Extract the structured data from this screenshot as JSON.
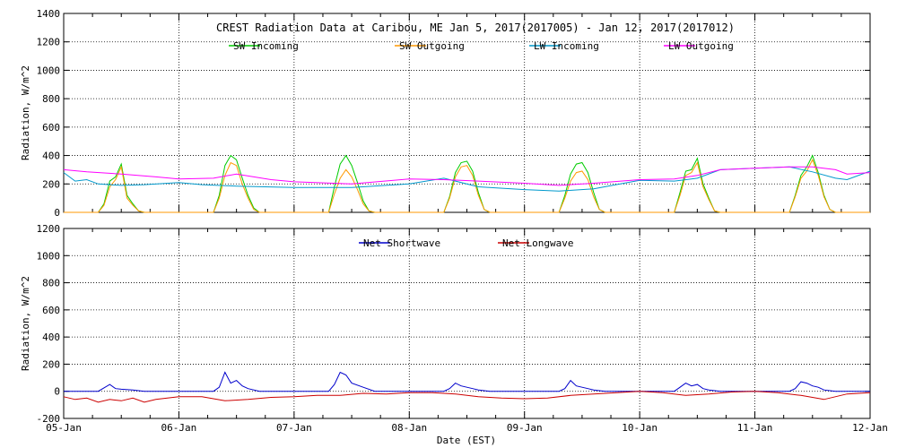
{
  "chart_data": [
    {
      "type": "line",
      "title": "CREST Radiation Data at Caribou, ME   Jan  5, 2017(2017005) - Jan 12, 2017(2017012)",
      "xlabel": "",
      "ylabel": "Radiation, W/m^2",
      "ylim": [
        0,
        1400
      ],
      "yticks": [
        0,
        200,
        400,
        600,
        800,
        1000,
        1200,
        1400
      ],
      "xlim": [
        0,
        7
      ],
      "grid": true,
      "legend_position": "top-center",
      "series": [
        {
          "name": "SW Incoming",
          "color": "#00cc00",
          "x": [
            0,
            0.3,
            0.35,
            0.4,
            0.45,
            0.5,
            0.55,
            0.6,
            0.65,
            0.7,
            1,
            1.3,
            1.35,
            1.4,
            1.45,
            1.5,
            1.55,
            1.6,
            1.65,
            1.7,
            2,
            2.3,
            2.35,
            2.4,
            2.45,
            2.5,
            2.55,
            2.6,
            2.65,
            2.7,
            3,
            3.3,
            3.35,
            3.4,
            3.45,
            3.5,
            3.55,
            3.6,
            3.65,
            3.7,
            4,
            4.3,
            4.35,
            4.4,
            4.45,
            4.5,
            4.55,
            4.6,
            4.65,
            4.7,
            5,
            5.3,
            5.35,
            5.4,
            5.45,
            5.5,
            5.55,
            5.6,
            5.65,
            5.7,
            6,
            6.3,
            6.35,
            6.4,
            6.45,
            6.5,
            6.55,
            6.6,
            6.65,
            6.7,
            7
          ],
          "y": [
            0,
            0,
            60,
            220,
            250,
            340,
            120,
            60,
            10,
            0,
            0,
            0,
            120,
            330,
            400,
            370,
            240,
            120,
            30,
            0,
            0,
            0,
            180,
            340,
            400,
            330,
            210,
            80,
            10,
            0,
            0,
            0,
            110,
            280,
            350,
            360,
            290,
            140,
            20,
            0,
            0,
            0,
            120,
            270,
            340,
            350,
            280,
            140,
            20,
            0,
            0,
            0,
            140,
            290,
            300,
            380,
            200,
            100,
            10,
            0,
            0,
            0,
            120,
            260,
            320,
            400,
            280,
            120,
            20,
            0,
            0
          ]
        },
        {
          "name": "SW Outgoing",
          "color": "#ff9900",
          "x": [
            0,
            0.3,
            0.35,
            0.4,
            0.45,
            0.5,
            0.55,
            0.6,
            0.65,
            0.7,
            1,
            1.3,
            1.35,
            1.4,
            1.45,
            1.5,
            1.55,
            1.6,
            1.65,
            1.7,
            2,
            2.3,
            2.35,
            2.4,
            2.45,
            2.5,
            2.55,
            2.6,
            2.65,
            2.7,
            3,
            3.3,
            3.35,
            3.4,
            3.45,
            3.5,
            3.55,
            3.6,
            3.65,
            3.7,
            4,
            4.3,
            4.35,
            4.4,
            4.45,
            4.5,
            4.55,
            4.6,
            4.65,
            4.7,
            5,
            5.3,
            5.35,
            5.4,
            5.45,
            5.5,
            5.55,
            5.6,
            5.65,
            5.7,
            6,
            6.3,
            6.35,
            6.4,
            6.45,
            6.5,
            6.55,
            6.6,
            6.65,
            6.7,
            7
          ],
          "y": [
            0,
            0,
            50,
            180,
            230,
            320,
            100,
            50,
            10,
            0,
            0,
            0,
            100,
            260,
            350,
            330,
            200,
            100,
            20,
            0,
            0,
            0,
            130,
            240,
            300,
            250,
            160,
            60,
            10,
            0,
            0,
            0,
            100,
            250,
            320,
            330,
            260,
            120,
            20,
            0,
            0,
            0,
            100,
            220,
            280,
            290,
            230,
            110,
            20,
            0,
            0,
            0,
            120,
            260,
            280,
            350,
            180,
            90,
            10,
            0,
            0,
            0,
            110,
            240,
            290,
            370,
            260,
            110,
            20,
            0,
            0
          ]
        },
        {
          "name": "LW Incoming",
          "color": "#0099cc",
          "x": [
            0,
            0.1,
            0.2,
            0.3,
            0.5,
            0.7,
            1,
            1.2,
            1.5,
            2,
            2.5,
            3,
            3.3,
            3.6,
            4,
            4.3,
            4.6,
            5,
            5.3,
            5.5,
            5.7,
            6,
            6.3,
            6.5,
            6.7,
            6.8,
            7
          ],
          "y": [
            280,
            220,
            230,
            200,
            190,
            195,
            210,
            195,
            185,
            175,
            175,
            200,
            240,
            180,
            160,
            150,
            165,
            225,
            220,
            240,
            300,
            310,
            320,
            285,
            240,
            230,
            290
          ]
        },
        {
          "name": "LW Outgoing",
          "color": "#ff00ff",
          "x": [
            0,
            0.2,
            0.5,
            0.8,
            1,
            1.3,
            1.5,
            1.8,
            2,
            2.5,
            3,
            3.3,
            3.6,
            4,
            4.3,
            4.6,
            5,
            5.3,
            5.5,
            5.7,
            6,
            6.3,
            6.5,
            6.7,
            6.8,
            7
          ],
          "y": [
            300,
            285,
            270,
            250,
            235,
            240,
            270,
            230,
            215,
            200,
            235,
            230,
            220,
            205,
            190,
            205,
            230,
            235,
            260,
            300,
            310,
            320,
            320,
            300,
            270,
            280
          ]
        }
      ]
    },
    {
      "type": "line",
      "title": "",
      "xlabel": "Date (EST)",
      "ylabel": "Radiation, W/m^2",
      "ylim": [
        -200,
        1200
      ],
      "yticks": [
        -200,
        0,
        200,
        400,
        600,
        800,
        1000,
        1200
      ],
      "xlim": [
        0,
        7
      ],
      "categories": [
        "05-Jan",
        "06-Jan",
        "07-Jan",
        "08-Jan",
        "09-Jan",
        "10-Jan",
        "11-Jan",
        "12-Jan"
      ],
      "grid": true,
      "legend_position": "top-center",
      "series": [
        {
          "name": "Net Shortwave",
          "color": "#0000cc",
          "x": [
            0,
            0.3,
            0.4,
            0.45,
            0.5,
            0.6,
            0.7,
            1,
            1.3,
            1.35,
            1.4,
            1.45,
            1.5,
            1.55,
            1.6,
            1.7,
            2,
            2.3,
            2.35,
            2.4,
            2.45,
            2.5,
            2.6,
            2.7,
            3,
            3.3,
            3.35,
            3.4,
            3.45,
            3.5,
            3.55,
            3.6,
            3.7,
            4,
            4.3,
            4.35,
            4.4,
            4.45,
            4.5,
            4.55,
            4.6,
            4.7,
            5,
            5.3,
            5.35,
            5.4,
            5.45,
            5.5,
            5.55,
            5.6,
            5.7,
            6,
            6.3,
            6.35,
            6.4,
            6.45,
            6.5,
            6.55,
            6.6,
            6.7,
            7
          ],
          "y": [
            0,
            0,
            50,
            20,
            15,
            10,
            0,
            0,
            0,
            30,
            140,
            60,
            80,
            40,
            20,
            0,
            0,
            0,
            50,
            140,
            120,
            60,
            30,
            0,
            0,
            0,
            20,
            60,
            40,
            30,
            20,
            10,
            0,
            0,
            0,
            20,
            80,
            40,
            30,
            20,
            10,
            0,
            0,
            0,
            30,
            60,
            40,
            50,
            20,
            10,
            0,
            0,
            0,
            20,
            70,
            60,
            40,
            30,
            10,
            0,
            0
          ]
        },
        {
          "name": "Net Longwave",
          "color": "#cc0000",
          "x": [
            0,
            0.1,
            0.2,
            0.3,
            0.4,
            0.5,
            0.6,
            0.7,
            0.8,
            1,
            1.2,
            1.4,
            1.6,
            1.8,
            2,
            2.2,
            2.4,
            2.6,
            2.8,
            3,
            3.2,
            3.4,
            3.6,
            3.8,
            4,
            4.2,
            4.4,
            4.6,
            4.8,
            5,
            5.2,
            5.4,
            5.6,
            5.8,
            6,
            6.2,
            6.4,
            6.6,
            6.8,
            7
          ],
          "y": [
            -40,
            -60,
            -50,
            -80,
            -60,
            -70,
            -50,
            -80,
            -60,
            -40,
            -40,
            -70,
            -60,
            -45,
            -40,
            -30,
            -30,
            -15,
            -20,
            -10,
            -10,
            -20,
            -40,
            -50,
            -55,
            -50,
            -30,
            -20,
            -10,
            0,
            -10,
            -30,
            -20,
            -5,
            0,
            -10,
            -30,
            -60,
            -20,
            -10
          ]
        }
      ]
    }
  ]
}
